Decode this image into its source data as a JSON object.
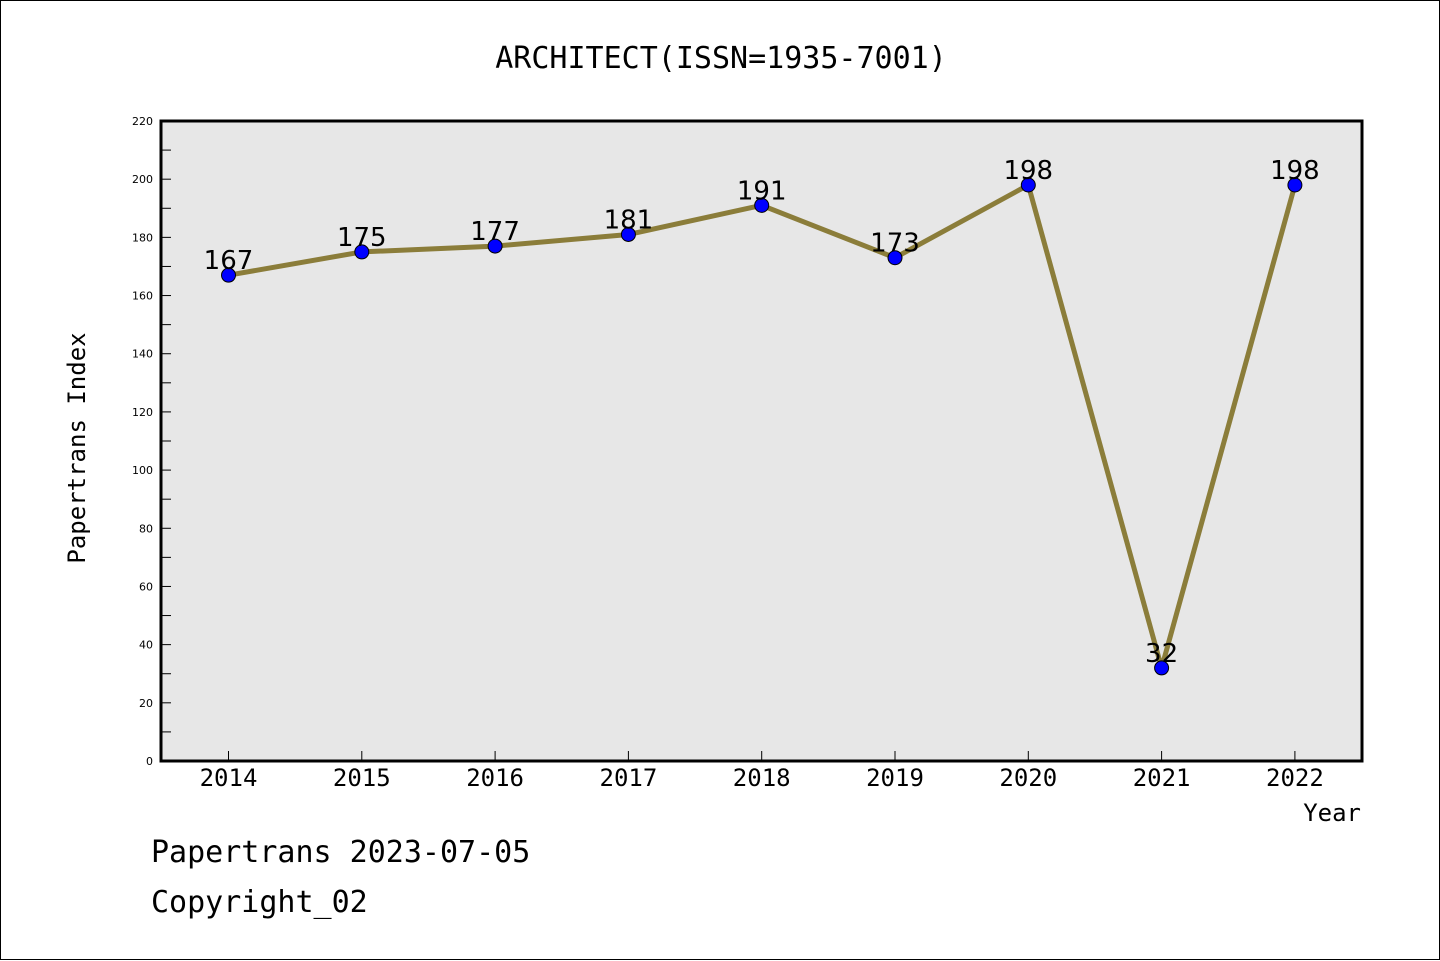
{
  "chart_data": {
    "type": "line",
    "title": "ARCHITECT(ISSN=1935-7001)",
    "xlabel": "Year",
    "ylabel": "Papertrans Index",
    "x": [
      "2014",
      "2015",
      "2016",
      "2017",
      "2018",
      "2019",
      "2020",
      "2021",
      "2022"
    ],
    "series": [
      {
        "values": [
          167,
          175,
          177,
          181,
          191,
          173,
          198,
          32,
          198
        ]
      }
    ],
    "data_labels": [
      "167",
      "175",
      "177",
      "181",
      "191",
      "173",
      "198",
      "32",
      "198"
    ],
    "ylim": [
      0,
      220
    ],
    "y_ticks": [
      "0",
      "20",
      "40",
      "60",
      "80",
      "100",
      "120",
      "140",
      "160",
      "180",
      "200",
      "220"
    ],
    "grid": false,
    "colors": {
      "line": "#8b7d3a",
      "marker": "#0000ff",
      "plot_background": "#e7e7e7"
    }
  },
  "footer": {
    "date_text": "Papertrans 2023-07-05",
    "copyright_text": "Copyright_02"
  }
}
